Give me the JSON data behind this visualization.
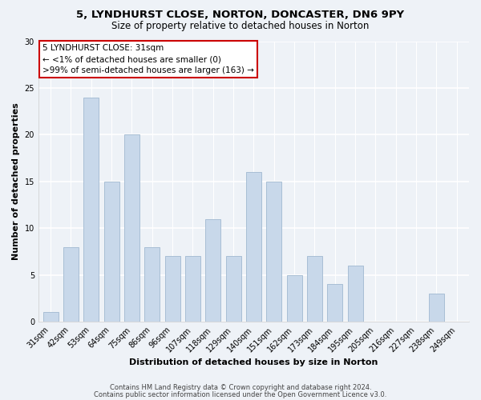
{
  "title_line1": "5, LYNDHURST CLOSE, NORTON, DONCASTER, DN6 9PY",
  "title_line2": "Size of property relative to detached houses in Norton",
  "xlabel": "Distribution of detached houses by size in Norton",
  "ylabel": "Number of detached properties",
  "categories": [
    "31sqm",
    "42sqm",
    "53sqm",
    "64sqm",
    "75sqm",
    "86sqm",
    "96sqm",
    "107sqm",
    "118sqm",
    "129sqm",
    "140sqm",
    "151sqm",
    "162sqm",
    "173sqm",
    "184sqm",
    "195sqm",
    "205sqm",
    "216sqm",
    "227sqm",
    "238sqm",
    "249sqm"
  ],
  "values": [
    1,
    8,
    24,
    15,
    20,
    8,
    7,
    7,
    11,
    7,
    16,
    15,
    5,
    7,
    4,
    6,
    0,
    0,
    0,
    3,
    0
  ],
  "bar_color": "#c8d8ea",
  "bar_edge_color": "#a0b8d0",
  "annotation_box_text": "5 LYNDHURST CLOSE: 31sqm\n← <1% of detached houses are smaller (0)\n>99% of semi-detached houses are larger (163) →",
  "annotation_box_color": "#ffffff",
  "annotation_box_edge_color": "#cc0000",
  "ylim": [
    0,
    30
  ],
  "yticks": [
    0,
    5,
    10,
    15,
    20,
    25,
    30
  ],
  "background_color": "#eef2f7",
  "plot_bg_color": "#eef2f7",
  "grid_color": "#ffffff",
  "footer_line1": "Contains HM Land Registry data © Crown copyright and database right 2024.",
  "footer_line2": "Contains public sector information licensed under the Open Government Licence v3.0.",
  "title_fontsize": 9.5,
  "subtitle_fontsize": 8.5,
  "axis_label_fontsize": 8,
  "tick_fontsize": 7,
  "annotation_fontsize": 7.5,
  "footer_fontsize": 6
}
